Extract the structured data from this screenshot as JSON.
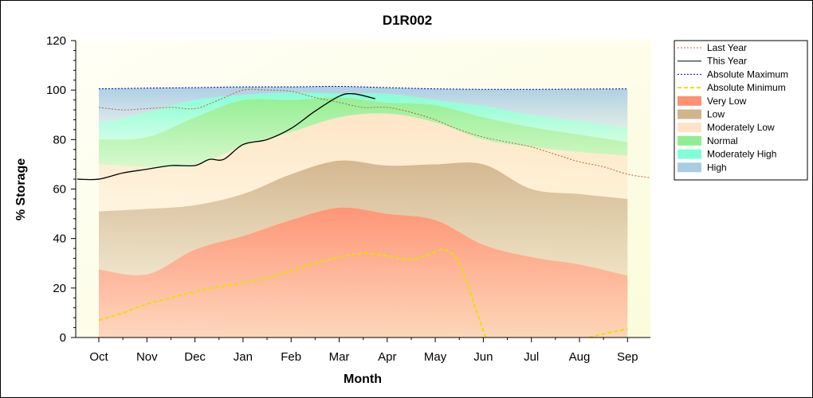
{
  "chart_data": {
    "type": "area",
    "title": "D1R002",
    "xlabel": "Month",
    "ylabel": "% Storage",
    "ylim": [
      0,
      120
    ],
    "yticks": [
      0,
      20,
      40,
      60,
      80,
      100,
      120
    ],
    "categories": [
      "Oct",
      "Nov",
      "Dec",
      "Jan",
      "Feb",
      "Mar",
      "Apr",
      "May",
      "Jun",
      "Jul",
      "Aug",
      "Sep"
    ],
    "legend_position": "right",
    "bands": [
      {
        "name": "Very Low",
        "color": "#ff9070",
        "upper": [
          27.5,
          25.5,
          35.5,
          41,
          47.5,
          52.5,
          50,
          47.5,
          37.5,
          32.5,
          29.5,
          25
        ]
      },
      {
        "name": "Low",
        "color": "#d2b48c",
        "upper": [
          51,
          52,
          53.5,
          58,
          66,
          71.5,
          69.5,
          70,
          70,
          60,
          58,
          56
        ]
      },
      {
        "name": "Moderately Low",
        "color": "#ffe4c4",
        "upper": [
          70,
          69,
          69.5,
          77.5,
          83,
          89,
          90.5,
          87,
          80,
          77,
          75,
          73.5
        ]
      },
      {
        "name": "Normal",
        "color": "#90ee90",
        "upper": [
          80,
          81,
          89,
          96,
          96,
          97,
          95,
          94,
          89,
          85,
          82,
          79
        ]
      },
      {
        "name": "Moderately High",
        "color": "#7fffd4",
        "upper": [
          86.5,
          91,
          96,
          98,
          99,
          98.5,
          98.5,
          96,
          93.5,
          90,
          87.5,
          85
        ]
      },
      {
        "name": "High",
        "color": "#a9cce3",
        "upper": [
          100.5,
          100.8,
          101,
          101.3,
          101.3,
          101.5,
          101,
          100.5,
          100.3,
          100.3,
          100.4,
          100.5
        ]
      }
    ],
    "series": [
      {
        "name": "Last Year",
        "color": "#c06030",
        "style": "dotted",
        "x": [
          0.0,
          0.5,
          1.0,
          1.5,
          2.0,
          2.5,
          3.0,
          3.5,
          4.0,
          4.5,
          5.0,
          5.5,
          6.0,
          6.5,
          7.0,
          7.5,
          8.0,
          8.5,
          9.0,
          9.5,
          10.0,
          10.5,
          11.0,
          11.5
        ],
        "y": [
          93,
          92,
          92.5,
          93,
          92.5,
          96,
          100,
          100,
          99.5,
          97,
          95,
          93,
          93,
          91,
          88,
          84,
          81,
          79,
          77,
          74,
          71,
          69,
          66,
          64.5
        ]
      },
      {
        "name": "This Year",
        "color": "#000000",
        "style": "solid",
        "x": [
          -0.45,
          0.0,
          0.5,
          1.0,
          1.5,
          2.0,
          2.3,
          2.6,
          3.0,
          3.5,
          4.0,
          4.5,
          5.0,
          5.3,
          5.75
        ],
        "y": [
          64,
          64,
          66.5,
          68,
          69.5,
          69.5,
          72,
          72,
          78,
          80,
          84.5,
          91.5,
          97.5,
          98.5,
          96.5
        ]
      },
      {
        "name": "Absolute Maximum",
        "color": "#0000c0",
        "style": "dotted",
        "x": [
          0,
          1,
          2,
          3,
          4,
          5,
          6,
          7,
          8,
          9,
          10,
          11
        ],
        "y": [
          100.5,
          100.8,
          101,
          101.3,
          101.3,
          101.5,
          101,
          100.5,
          100.3,
          100.3,
          100.4,
          100.5
        ]
      },
      {
        "name": "Absolute Minimum",
        "color": "#e8e000",
        "style": "dashed",
        "x": [
          0.0,
          0.5,
          1.0,
          1.5,
          2.0,
          2.5,
          3.0,
          3.5,
          4.0,
          4.5,
          5.0,
          5.5,
          6.0,
          6.5,
          6.85,
          7.2,
          7.5,
          7.8,
          8.05
        ],
        "y": [
          7,
          10,
          13.5,
          16,
          18.5,
          20.5,
          22,
          24,
          27,
          30,
          32.5,
          34,
          33,
          31.5,
          33.5,
          35.5,
          30,
          14,
          0
        ]
      },
      {
        "name": "Absolute Minimum",
        "color": "#e8e000",
        "style": "dashed",
        "legend": false,
        "x": [
          10.2,
          10.5,
          11.0
        ],
        "y": [
          0,
          1.5,
          3.5
        ]
      }
    ]
  }
}
